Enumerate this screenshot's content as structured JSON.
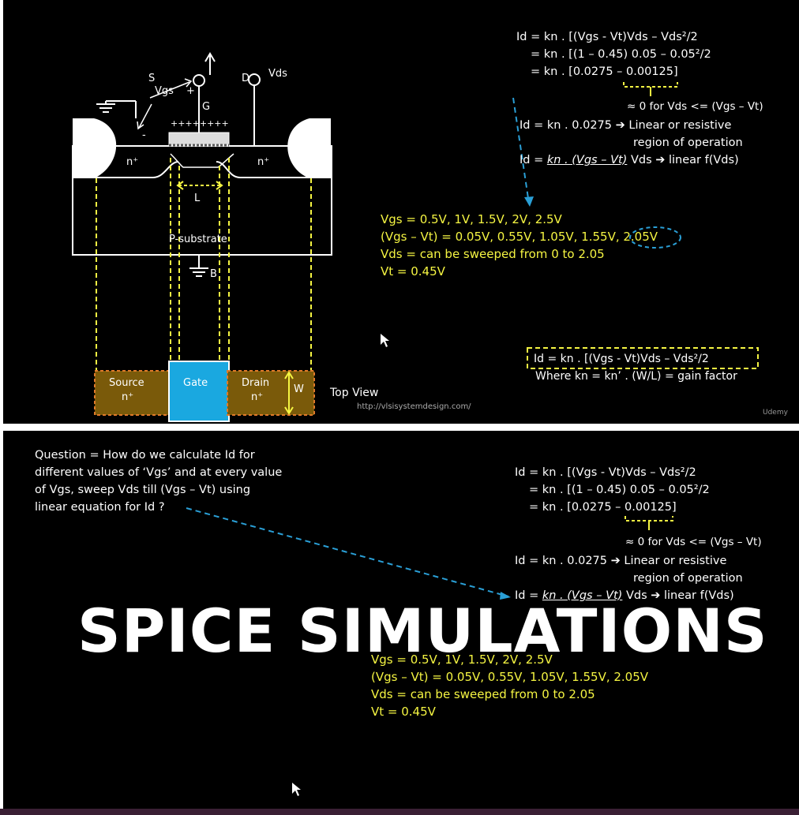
{
  "top": {
    "labels": {
      "s": "S",
      "vgs": "Vgs",
      "plus_small": "+",
      "minus_small": "-",
      "g": "G",
      "d": "D",
      "vds": "Vds",
      "charges": "++++++++",
      "n_left": "n⁺",
      "n_right": "n⁺",
      "l": "L",
      "substrate": "P-substrate",
      "b": "B",
      "source": "Source",
      "source_n": "n⁺",
      "gate": "Gate",
      "drain": "Drain",
      "drain_n": "n⁺",
      "w": "W",
      "top_view": "Top View",
      "url": "http://vlsisystemdesign.com/"
    },
    "equations": [
      "Id = kn . [(Vgs - Vt)Vds – Vds²/2",
      "= kn . [(1 – 0.45) 0.05 – 0.05²/2",
      "= kn . [0.0275 – 0.00125]"
    ],
    "approx": "≈ 0 for Vds <= (Vgs – Vt)",
    "linear_line": "Id = kn . 0.0275 ➔ Linear or resistive",
    "region": "region of operation",
    "id_pre": "Id = ",
    "id_formula": "kn . (Vgs – Vt)",
    "id_post": " Vds ➔ linear f(Vds)",
    "yellow": [
      "Vgs = 0.5V, 1V, 1.5V, 2V, 2.5V",
      "(Vgs – Vt) = 0.05V, 0.55V, 1.05V, 1.55V, 2.05V",
      "Vds = can be sweeped from 0 to 2.05",
      "Vt = 0.45V"
    ],
    "boxed": "Id = kn . [(Vgs - Vt)Vds – Vds²/2",
    "where": "Where kn = kn’ . (W/L) = gain factor",
    "watermark": "Udemy"
  },
  "bottom": {
    "question": [
      "Question = How do we calculate Id for",
      "different values of ‘Vgs’ and at every value",
      "of Vgs, sweep Vds till (Vgs – Vt) using",
      "linear equation for Id ?"
    ],
    "equations": [
      "Id = kn . [(Vgs - Vt)Vds – Vds²/2",
      "= kn . [(1 – 0.45) 0.05 – 0.05²/2",
      "= kn . [0.0275 – 0.00125]"
    ],
    "approx": "≈ 0 for Vds <= (Vgs – Vt)",
    "linear_line": "Id = kn . 0.0275 ➔ Linear or resistive",
    "region": "region of operation",
    "id_pre": "Id = ",
    "id_formula": "kn . (Vgs – Vt)",
    "id_post": " Vds ➔ linear f(Vds)",
    "overlay_title": "SPICE SIMULATIONS",
    "yellow": [
      "Vgs = 0.5V, 1V, 1.5V, 2V, 2.5V",
      "(Vgs – Vt) = 0.05V, 0.55V, 1.05V, 1.55V, 2.05V",
      "Vds = can be sweeped from 0 to 2.05",
      "Vt = 0.45V"
    ]
  },
  "colors": {
    "yellow": "#f5f542",
    "dash_blue": "#2a9fd6",
    "gate_blue": "#1aa8e0",
    "box_brown": "#7a5a0a",
    "box_border_orange": "#e07a2a"
  }
}
